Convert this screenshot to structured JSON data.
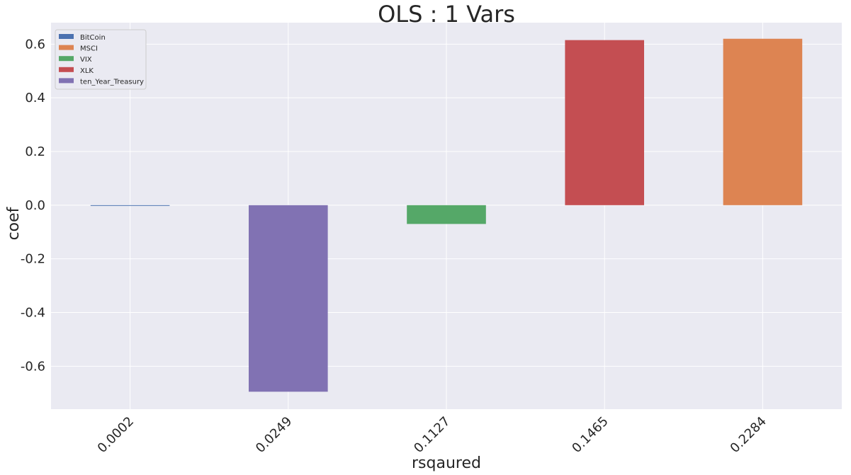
{
  "chart_data": {
    "type": "bar",
    "title": "OLS : 1 Vars",
    "xlabel": "rsqaured",
    "ylabel": "coef",
    "categories": [
      "0.0002",
      "0.0249",
      "0.1127",
      "0.1465",
      "0.2284"
    ],
    "ylim": [
      -0.76,
      0.68
    ],
    "yticks": [
      -0.6,
      -0.4,
      -0.2,
      0.0,
      0.2,
      0.4,
      0.6
    ],
    "ytick_labels": [
      "-0.6",
      "-0.4",
      "-0.2",
      "0.0",
      "0.2",
      "0.4",
      "0.6"
    ],
    "grid": true,
    "legend_position": "top-left",
    "series": [
      {
        "name": "BitCoin",
        "color": "#4c72b0",
        "values": [
          -0.002,
          null,
          null,
          null,
          null
        ]
      },
      {
        "name": "MSCI",
        "color": "#dd8452",
        "values": [
          null,
          null,
          null,
          null,
          0.62
        ]
      },
      {
        "name": "VIX",
        "color": "#55a868",
        "values": [
          null,
          null,
          -0.07,
          null,
          null
        ]
      },
      {
        "name": "XLK",
        "color": "#c44e52",
        "values": [
          null,
          null,
          null,
          0.615,
          null
        ]
      },
      {
        "name": "ten_Year_Treasury",
        "color": "#8172b3",
        "values": [
          null,
          -0.695,
          null,
          null,
          null
        ]
      }
    ]
  }
}
